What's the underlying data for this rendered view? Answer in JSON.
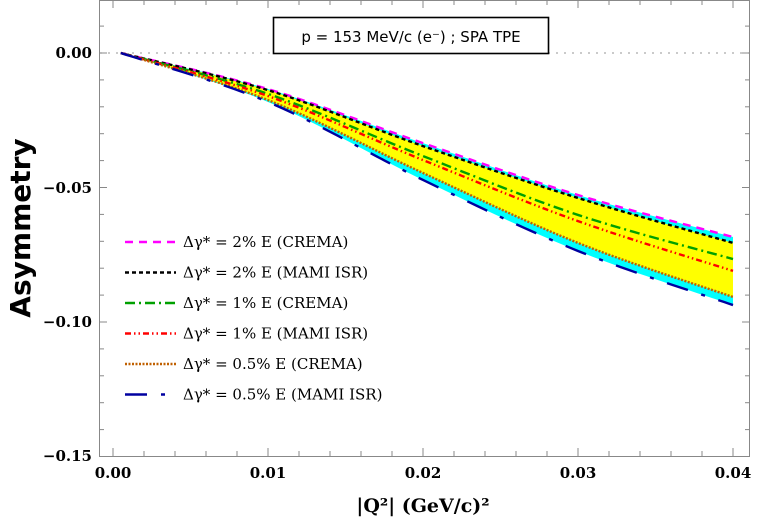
{
  "chart_data": {
    "type": "line",
    "title": "",
    "annotation": "p = 153 MeV/c (e⁻) ; SPA TPE",
    "xlabel": "|Q²|  (GeV/c)²",
    "ylabel": "Asymmetry",
    "xlim": [
      0.0,
      0.04
    ],
    "ylim": [
      -0.15,
      0.0
    ],
    "x_ticks": [
      "0.00",
      "0.01",
      "0.02",
      "0.03",
      "0.04"
    ],
    "y_ticks": [
      "0.00",
      "−0.05",
      "−0.10",
      "−0.15"
    ],
    "grid": false,
    "reference_line": {
      "y": 0.0,
      "style": "dotted",
      "color": "#aaaaaa"
    },
    "legend_position": "left-middle",
    "x": [
      0.0005,
      0.01,
      0.02,
      0.03,
      0.04
    ],
    "series": [
      {
        "name": "Δγ* = 2% E (CREMA)",
        "color": "#ff00ff",
        "dash": "8,6",
        "values": [
          0.0,
          -0.0134,
          -0.0335,
          -0.0528,
          -0.0684
        ]
      },
      {
        "name": "Δγ* = 2% E (MAMI ISR)",
        "color": "#000000",
        "dash": "4,3",
        "values": [
          0.0,
          -0.0138,
          -0.0346,
          -0.0539,
          -0.0706
        ]
      },
      {
        "name": "Δγ* = 1% E (CREMA)",
        "color": "#00a000",
        "dash": "10,4,2,4",
        "values": [
          0.0,
          -0.0152,
          -0.0383,
          -0.0602,
          -0.0766
        ]
      },
      {
        "name": "Δγ* = 1% E (MAMI ISR)",
        "color": "#ff0000",
        "dash": "6,3,1.5,3,1.5,3",
        "values": [
          0.0,
          -0.016,
          -0.0398,
          -0.0625,
          -0.081
        ]
      },
      {
        "name": "Δγ* = 0.5% E (CREMA)",
        "color": "#c06000",
        "dash": "2,1.5",
        "values": [
          0.0,
          -0.0175,
          -0.0446,
          -0.0706,
          -0.0907
        ]
      },
      {
        "name": "Δγ* = 0.5% E (MAMI ISR)",
        "color": "#0000a0",
        "dash": "22,14,4,14",
        "values": [
          0.0,
          -0.0182,
          -0.0472,
          -0.0736,
          -0.0937
        ]
      }
    ],
    "bands": [
      {
        "name": "outer band (MAMI ISR vs CREMA spread)",
        "color": "#00ffff",
        "upper_series": 0,
        "lower_series": 5
      },
      {
        "name": "inner band",
        "color": "#ffff00",
        "upper_series": 1,
        "lower_series": 4
      }
    ]
  }
}
